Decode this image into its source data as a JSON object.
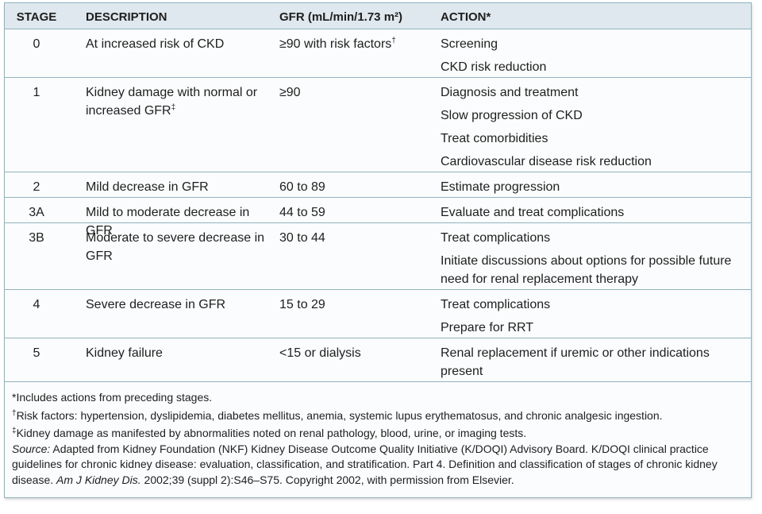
{
  "table": {
    "header": [
      "STAGE",
      "DESCRIPTION",
      "GFR (mL/min/1.73 m²)",
      "ACTION*"
    ],
    "rows": [
      {
        "stage": "0",
        "description": "At increased risk of CKD",
        "gfr": "≥90 with risk factors",
        "gfr_note": "†",
        "actions": [
          "Screening",
          "CKD risk reduction"
        ]
      },
      {
        "stage": "1",
        "description": "Kidney damage with normal or increased GFR",
        "description_note": "‡",
        "gfr": "≥90",
        "actions": [
          "Diagnosis and treatment",
          "Slow progression of CKD",
          "Treat comorbidities",
          "Cardiovascular disease risk reduction"
        ]
      },
      {
        "stage": "2",
        "description": "Mild decrease in GFR",
        "gfr": "60 to 89",
        "actions": [
          "Estimate progression"
        ]
      },
      {
        "stage": "3A",
        "description": "Mild to moderate decrease in GFR",
        "gfr": "44 to 59",
        "actions": [
          "Evaluate and treat complications"
        ]
      },
      {
        "stage": "3B",
        "description": "Moderate to severe decrease in GFR",
        "gfr": "30 to 44",
        "actions": [
          "Treat complications",
          "Initiate discussions about options for possible future need for renal replacement therapy"
        ]
      },
      {
        "stage": "4",
        "description": "Severe decrease in GFR",
        "gfr": "15 to 29",
        "actions": [
          "Treat complications",
          "Prepare for RRT"
        ]
      },
      {
        "stage": "5",
        "description": "Kidney failure",
        "gfr": "<15 or dialysis",
        "actions": [
          "Renal replacement if uremic or other indications present"
        ]
      }
    ]
  },
  "footnotes": [
    {
      "mark": "*",
      "text": "Includes actions from preceding stages."
    },
    {
      "mark": "†",
      "text": "Risk factors: hypertension, dyslipidemia, diabetes mellitus, anemia, systemic lupus erythematosus, and chronic analgesic ingestion."
    },
    {
      "mark": "‡",
      "text": "Kidney damage as manifested by abnormalities noted on renal pathology, blood, urine, or imaging tests."
    },
    {
      "parts": [
        {
          "text": "Source:",
          "italic": true
        },
        {
          "text": "Adapted from Kidney Foundation (NKF) Kidney Disease Outcome Quality Initiative (K/DOQI) Advisory Board. K/DOQI clinical practice guidelines for chronic kidney disease: evaluation, classification, and stratification. Part 4. Definition and classification of stages of chronic kidney disease.",
          "italic": false
        },
        {
          "text": "Am J Kidney Dis.",
          "italic": true
        },
        {
          "text": "2002;39 (suppl 2):S46–S75. Copyright 2002, with permission from Elsevier.",
          "italic": false
        }
      ]
    }
  ]
}
